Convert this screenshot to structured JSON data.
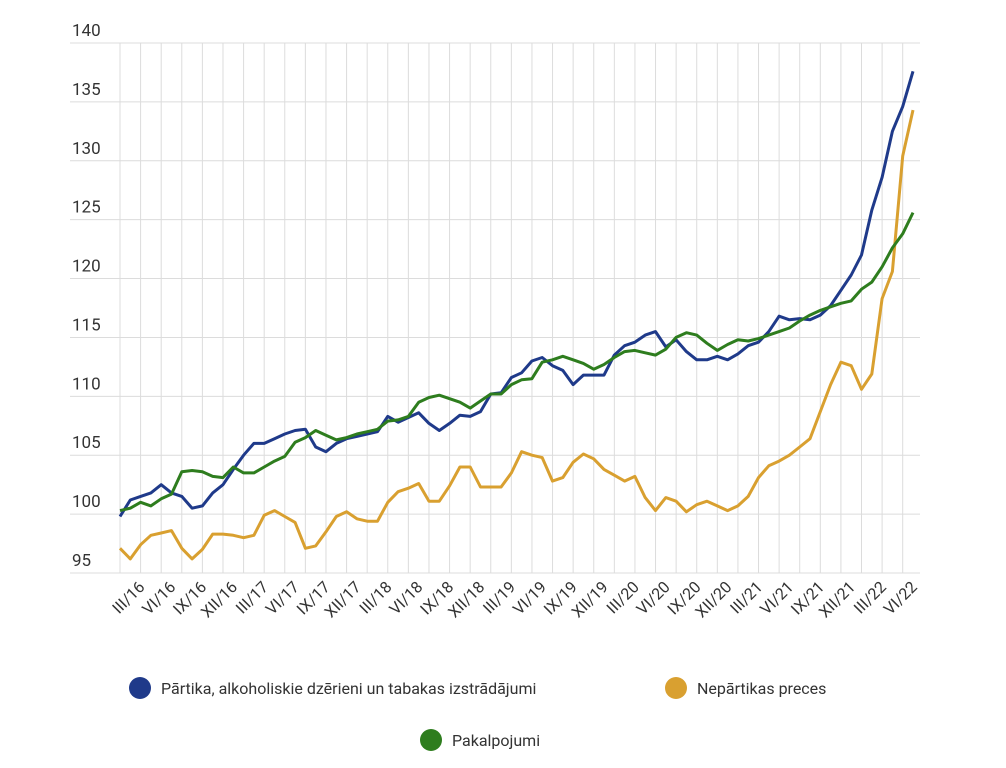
{
  "chart_data": {
    "type": "line",
    "categories": [
      null,
      null,
      "III/16",
      null,
      null,
      "VI/16",
      null,
      null,
      "IX/16",
      null,
      null,
      "XII/16",
      null,
      null,
      "III/17",
      null,
      null,
      "VI/17",
      null,
      null,
      "IX/17",
      null,
      null,
      "XII/17",
      null,
      null,
      "III/18",
      null,
      null,
      "VI/18",
      null,
      null,
      "IX/18",
      null,
      null,
      "XII/18",
      null,
      null,
      "III/19",
      null,
      null,
      "VI/19",
      null,
      null,
      "IX/19",
      null,
      null,
      "XII/19",
      null,
      null,
      "III/20",
      null,
      null,
      "VI/20",
      null,
      null,
      "IX/20",
      null,
      null,
      "XII/20",
      null,
      null,
      "III/21",
      null,
      null,
      "VI/21",
      null,
      null,
      "IX/21",
      null,
      null,
      "XII/21",
      null,
      null,
      "III/22",
      null,
      null,
      "VI/22"
    ],
    "series": [
      {
        "name": "Pārtika, alkoholiskie dzērieni un tabakas izstrādājumi",
        "color": "#1f3a8a",
        "values": [
          99.8,
          101.2,
          101.5,
          101.8,
          102.5,
          101.8,
          101.5,
          100.5,
          100.7,
          101.8,
          102.5,
          103.8,
          105.0,
          106.0,
          106.0,
          106.4,
          106.8,
          107.1,
          107.2,
          105.7,
          105.3,
          106.0,
          106.4,
          106.6,
          106.8,
          107.0,
          108.3,
          107.8,
          108.2,
          108.6,
          107.7,
          107.1,
          107.7,
          108.4,
          108.3,
          108.7,
          110.2,
          110.3,
          111.6,
          112.0,
          113.0,
          113.3,
          112.6,
          112.2,
          111.0,
          111.8,
          111.8,
          111.8,
          113.5,
          114.3,
          114.6,
          115.2,
          115.5,
          114.2,
          114.8,
          113.8,
          113.1,
          113.1,
          113.4,
          113.1,
          113.6,
          114.3,
          114.6,
          115.5,
          116.8,
          116.5,
          116.6,
          116.5,
          116.9,
          117.7,
          119.0,
          120.3,
          122.0,
          125.8,
          128.6,
          132.5,
          134.6,
          137.6
        ]
      },
      {
        "name": "Nepārtikas preces",
        "color": "#d9a030",
        "values": [
          97.1,
          96.2,
          97.4,
          98.2,
          98.4,
          98.6,
          97.1,
          96.2,
          97.0,
          98.3,
          98.3,
          98.2,
          98.0,
          98.2,
          99.9,
          100.3,
          99.8,
          99.3,
          97.1,
          97.3,
          98.5,
          99.8,
          100.2,
          99.6,
          99.4,
          99.4,
          101.0,
          101.9,
          102.2,
          102.6,
          101.1,
          101.1,
          102.4,
          104.0,
          104.0,
          102.3,
          102.3,
          102.3,
          103.5,
          105.3,
          105.0,
          104.8,
          102.8,
          103.1,
          104.4,
          105.1,
          104.7,
          103.8,
          103.3,
          102.8,
          103.2,
          101.4,
          100.3,
          101.4,
          101.1,
          100.2,
          100.8,
          101.1,
          100.7,
          100.3,
          100.7,
          101.5,
          103.1,
          104.1,
          104.5,
          105.0,
          105.7,
          106.4,
          108.7,
          111.0,
          112.9,
          112.6,
          110.6,
          111.9,
          118.3,
          120.6,
          130.4,
          134.3
        ]
      },
      {
        "name": "Pakalpojumi",
        "color": "#2e7d1e",
        "values": [
          100.3,
          100.5,
          101.0,
          100.7,
          101.3,
          101.7,
          103.6,
          103.7,
          103.6,
          103.2,
          103.1,
          104.0,
          103.5,
          103.5,
          104.0,
          104.5,
          104.9,
          106.1,
          106.5,
          107.1,
          106.7,
          106.3,
          106.5,
          106.8,
          107.0,
          107.2,
          107.9,
          108.0,
          108.3,
          109.5,
          109.9,
          110.1,
          109.8,
          109.5,
          109.0,
          109.6,
          110.2,
          110.2,
          111.0,
          111.4,
          111.5,
          112.9,
          113.1,
          113.4,
          113.1,
          112.8,
          112.3,
          112.7,
          113.3,
          113.8,
          113.9,
          113.7,
          113.5,
          114.0,
          115.0,
          115.4,
          115.2,
          114.5,
          113.9,
          114.4,
          114.8,
          114.7,
          114.9,
          115.2,
          115.5,
          115.8,
          116.4,
          116.9,
          117.3,
          117.6,
          117.9,
          118.1,
          119.1,
          119.7,
          121.0,
          122.6,
          123.8,
          125.6
        ]
      }
    ],
    "ylim": [
      95,
      140
    ],
    "yticks": [
      95,
      100,
      105,
      110,
      115,
      120,
      125,
      130,
      135,
      140
    ],
    "grid": true
  }
}
